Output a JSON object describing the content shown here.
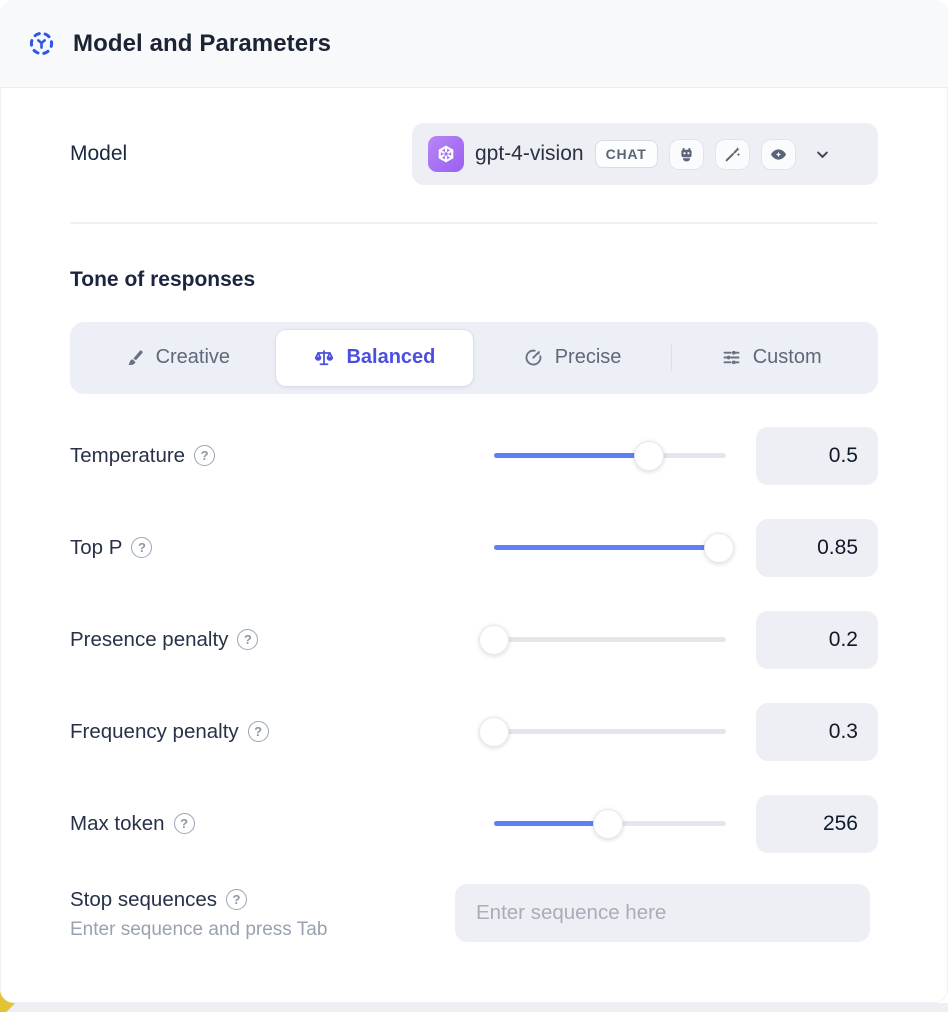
{
  "header": {
    "title": "Model and Parameters"
  },
  "icons": {
    "help": "?",
    "names": [
      "model-icon",
      "openai-logo-icon",
      "robot-icon",
      "magic-wand-icon",
      "eye-icon",
      "chevron-down-icon",
      "paintbrush-icon",
      "balance-scale-icon",
      "target-arrow-icon",
      "sliders-icon"
    ]
  },
  "colors": {
    "accent_blue": "#5e7ff6",
    "accent_indigo": "#4a4fe0",
    "header_icon_blue": "#3056e8",
    "logo_purple": "#a76ef5",
    "surface_gray": "#edeff4",
    "corner_yellow": "#e2c335"
  },
  "model_row": {
    "label": "Model",
    "model_name": "gpt-4-vision",
    "type_badge": "CHAT",
    "capability_icons": [
      "robot",
      "magic-wand",
      "eye"
    ]
  },
  "tone": {
    "heading": "Tone of responses",
    "options": [
      {
        "label": "Creative",
        "icon": "paintbrush-icon",
        "selected": false
      },
      {
        "label": "Balanced",
        "icon": "balance-scale-icon",
        "selected": true
      },
      {
        "label": "Precise",
        "icon": "target-arrow-icon",
        "selected": false
      },
      {
        "label": "Custom",
        "icon": "sliders-icon",
        "selected": false
      }
    ]
  },
  "params": [
    {
      "label": "Temperature",
      "value": "0.5",
      "fill_pct": 67
    },
    {
      "label": "Top P",
      "value": "0.85",
      "fill_pct": 97
    },
    {
      "label": "Presence penalty",
      "value": "0.2",
      "fill_pct": 0
    },
    {
      "label": "Frequency penalty",
      "value": "0.3",
      "fill_pct": 0
    },
    {
      "label": "Max token",
      "value": "256",
      "fill_pct": 49
    }
  ],
  "stop": {
    "label": "Stop sequences",
    "helper": "Enter sequence and press Tab",
    "placeholder": "Enter sequence here",
    "value": ""
  }
}
